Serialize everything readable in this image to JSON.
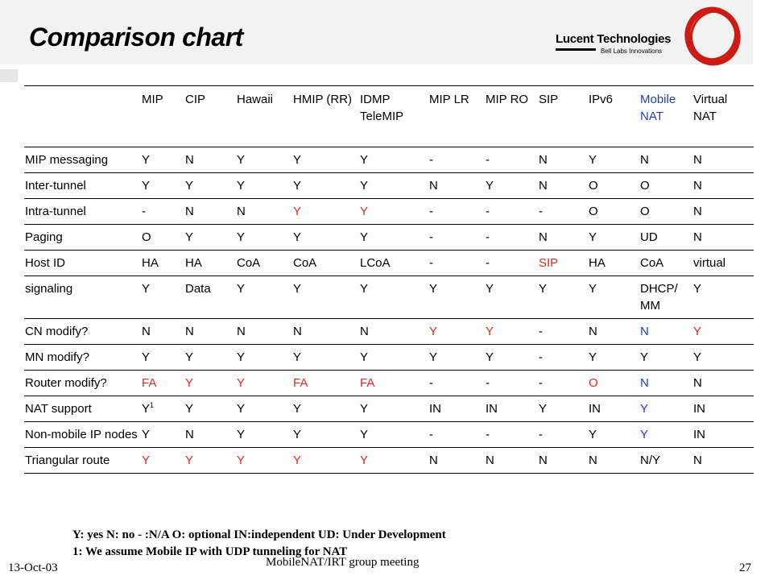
{
  "slide": {
    "title": "Comparison chart",
    "logo_name": "Lucent Technologies",
    "logo_sub": "Bell Labs Innovations"
  },
  "table": {
    "columns": [
      "MIP",
      "CIP",
      "Hawaii",
      "HMIP (RR)",
      "IDMP TeleMIP",
      "MIP LR",
      "MIP RO",
      "SIP",
      "IPv6",
      "Mobile NAT",
      "Virtual NAT"
    ],
    "rows": [
      {
        "label": "MIP messaging",
        "cells": [
          "Y",
          "N",
          "Y",
          "Y",
          "Y",
          "-",
          "-",
          "N",
          "Y",
          "N",
          "N"
        ]
      },
      {
        "label": "Inter-tunnel",
        "cells": [
          "Y",
          "Y",
          "Y",
          "Y",
          "Y",
          "N",
          "Y",
          "N",
          "O",
          "O",
          "N"
        ]
      },
      {
        "label": "Intra-tunnel",
        "cells": [
          "-",
          "N",
          "N",
          "Y",
          "Y",
          "-",
          "-",
          "-",
          "O",
          "O",
          "N"
        ]
      },
      {
        "label": "Paging",
        "cells": [
          "O",
          "Y",
          "Y",
          "Y",
          "Y",
          "-",
          "-",
          "N",
          "Y",
          "UD",
          "N"
        ]
      },
      {
        "label": "Host ID",
        "cells": [
          "HA",
          "HA",
          "CoA",
          "CoA",
          "LCoA",
          "-",
          "-",
          "SIP",
          "HA",
          "CoA",
          "virtual"
        ]
      },
      {
        "label": "signaling",
        "cells": [
          "Y",
          "Data",
          "Y",
          "Y",
          "Y",
          "Y",
          "Y",
          "Y",
          "Y",
          "DHCP/ MM",
          "Y"
        ]
      },
      {
        "label": "CN modify?",
        "cells": [
          "N",
          "N",
          "N",
          "N",
          "N",
          "Y",
          "Y",
          "-",
          "N",
          "N",
          "Y"
        ]
      },
      {
        "label": "MN modify?",
        "cells": [
          "Y",
          "Y",
          "Y",
          "Y",
          "Y",
          "Y",
          "Y",
          "-",
          "Y",
          "Y",
          "Y"
        ]
      },
      {
        "label": "Router modify?",
        "cells": [
          "FA",
          "Y",
          "Y",
          "FA",
          "FA",
          "-",
          "-",
          "-",
          "O",
          "N",
          "N"
        ]
      },
      {
        "label": "NAT support",
        "cells": [
          "Y",
          "Y",
          "Y",
          "Y",
          "Y",
          "IN",
          "IN",
          "Y",
          "IN",
          "Y",
          "IN"
        ],
        "note": "1"
      },
      {
        "label": "Non-mobile IP nodes",
        "cells": [
          "Y",
          "N",
          "Y",
          "Y",
          "Y",
          "-",
          "-",
          "-",
          "Y",
          "Y",
          "IN"
        ]
      },
      {
        "label": "Triangular route",
        "cells": [
          "Y",
          "Y",
          "Y",
          "Y",
          "Y",
          "N",
          "N",
          "N",
          "N",
          "N/Y",
          "N"
        ]
      }
    ]
  },
  "legend": {
    "line1": "Y: yes    N: no     - :N/A    O: optional    IN:independent  UD: Under Development",
    "line2": "1: We assume Mobile IP with UDP tunneling for NAT"
  },
  "footer": {
    "date": "13-Oct-03",
    "center": "MobileNAT/IRT group meeting",
    "page": "27"
  },
  "colors": {
    "highlight_red": "#e02a1f",
    "highlight_blue": "#1f3fbf"
  }
}
